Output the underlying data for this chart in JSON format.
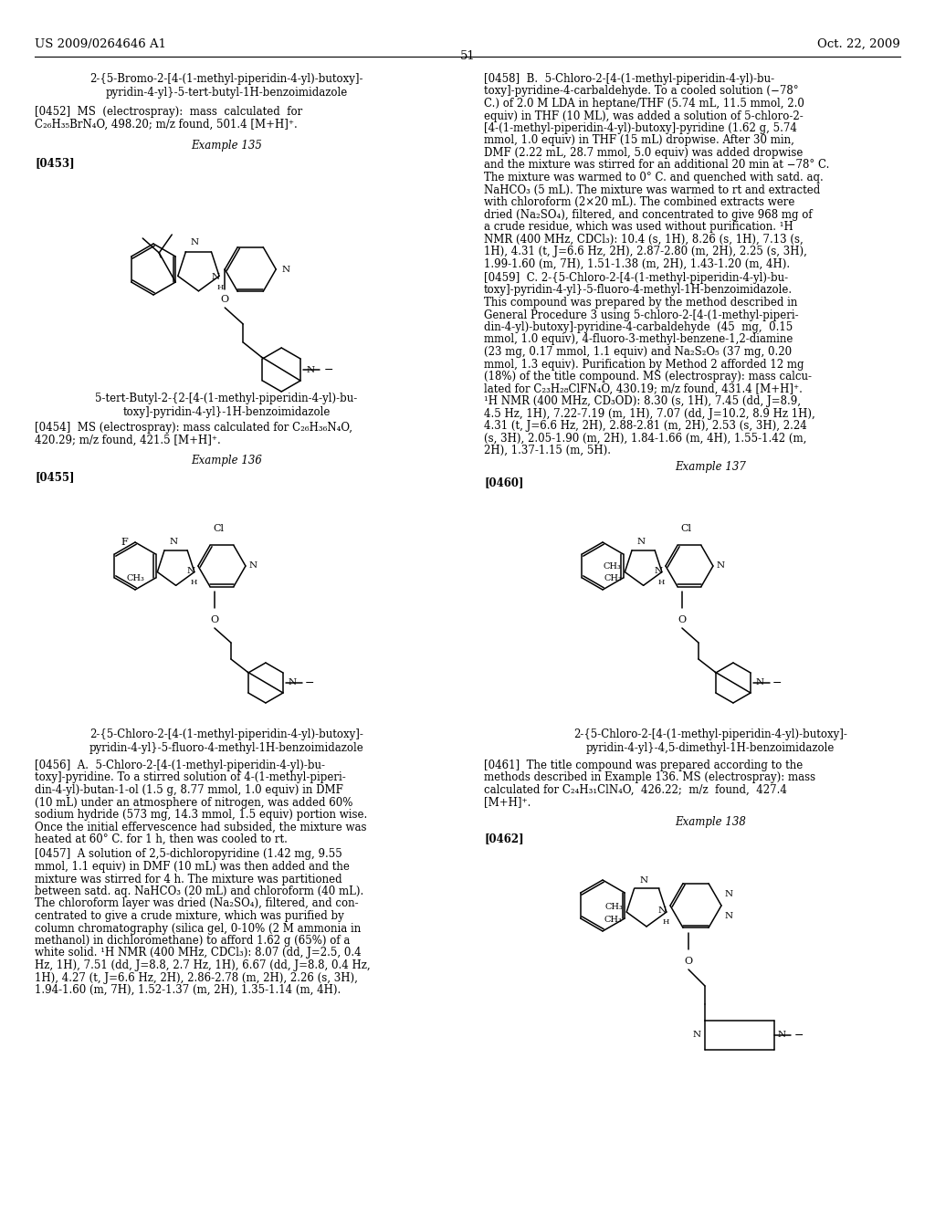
{
  "page_header_left": "US 2009/0264646 A1",
  "page_header_right": "Oct. 22, 2009",
  "page_number": "51",
  "background_color": "#ffffff",
  "title_top_line1": "2-{5-Bromo-2-[4-(1-methyl-piperidin-4-yl)-butoxy]-",
  "title_top_line2": "pyridin-4-yl}-5-tert-butyl-1H-benzoimidazole",
  "para_0452_line1": "[0452]  MS  (electrospray):  mass  calculated  for",
  "para_0452_line2": "C₂₆H₃₅BrN₄O, 498.20; m/z found, 501.4 [M+H]⁺.",
  "ex135": "Example 135",
  "label_0453": "[0453]",
  "caption_135_line1": "5-tert-Butyl-2-{2-[4-(1-methyl-piperidin-4-yl)-bu-",
  "caption_135_line2": "toxy]-pyridin-4-yl}-1H-benzoimidazole",
  "para_0454_line1": "[0454]  MS (electrospray): mass calculated for C₂₆H₃₆N₄O,",
  "para_0454_line2": "420.29; m/z found, 421.5 [M+H]⁺.",
  "ex136": "Example 136",
  "label_0455": "[0455]",
  "caption_136_line1": "2-{5-Chloro-2-[4-(1-methyl-piperidin-4-yl)-butoxy]-",
  "caption_136_line2": "pyridin-4-yl}-5-fluoro-4-methyl-1H-benzoimidazole",
  "para_0456_1": "[0456]  A.  5-Chloro-2-[4-(1-methyl-piperidin-4-yl)-bu-",
  "para_0456_2": "toxy]-pyridine. To a stirred solution of 4-(1-methyl-piperi-",
  "para_0456_3": "din-4-yl)-butan-1-ol (1.5 g, 8.77 mmol, 1.0 equiv) in DMF",
  "para_0456_4": "(10 mL) under an atmosphere of nitrogen, was added 60%",
  "para_0456_5": "sodium hydride (573 mg, 14.3 mmol, 1.5 equiv) portion wise.",
  "para_0456_6": "Once the initial effervescence had subsided, the mixture was",
  "para_0456_7": "heated at 60° C. for 1 h, then was cooled to rt.",
  "para_0457_1": "[0457]  A solution of 2,5-dichloropyridine (1.42 mg, 9.55",
  "para_0457_2": "mmol, 1.1 equiv) in DMF (10 mL) was then added and the",
  "para_0457_3": "mixture was stirred for 4 h. The mixture was partitioned",
  "para_0457_4": "between satd. aq. NaHCO₃ (20 mL) and chloroform (40 mL).",
  "para_0457_5": "The chloroform layer was dried (Na₂SO₄), filtered, and con-",
  "para_0457_6": "centrated to give a crude mixture, which was purified by",
  "para_0457_7": "column chromatography (silica gel, 0-10% (2 M ammonia in",
  "para_0457_8": "methanol) in dichloromethane) to afford 1.62 g (65%) of a",
  "para_0457_9": "white solid. ¹H NMR (400 MHz, CDCl₃): 8.07 (dd, J=2.5, 0.4",
  "para_0457_10": "Hz, 1H), 7.51 (dd, J=8.8, 2.7 Hz, 1H), 6.67 (dd, J=8.8, 0.4 Hz,",
  "para_0457_11": "1H), 4.27 (t, J=6.6 Hz, 2H), 2.86-2.78 (m, 2H), 2.26 (s, 3H),",
  "para_0457_12": "1.94-1.60 (m, 7H), 1.52-1.37 (m, 2H), 1.35-1.14 (m, 4H).",
  "para_0458_1": "[0458]  B.  5-Chloro-2-[4-(1-methyl-piperidin-4-yl)-bu-",
  "para_0458_2": "toxy]-pyridine-4-carbaldehyde. To a cooled solution (−78°",
  "para_0458_3": "C.) of 2.0 M LDA in heptane/THF (5.74 mL, 11.5 mmol, 2.0",
  "para_0458_4": "equiv) in THF (10 ML), was added a solution of 5-chloro-2-",
  "para_0458_5": "[4-(1-methyl-piperidin-4-yl)-butoxy]-pyridine (1.62 g, 5.74",
  "para_0458_6": "mmol, 1.0 equiv) in THF (15 mL) dropwise. After 30 min,",
  "para_0458_7": "DMF (2.22 mL, 28.7 mmol, 5.0 equiv) was added dropwise",
  "para_0458_8": "and the mixture was stirred for an additional 20 min at −78° C.",
  "para_0458_9": "The mixture was warmed to 0° C. and quenched with satd. aq.",
  "para_0458_10": "NaHCO₃ (5 mL). The mixture was warmed to rt and extracted",
  "para_0458_11": "with chloroform (2×20 mL). The combined extracts were",
  "para_0458_12": "dried (Na₂SO₄), filtered, and concentrated to give 968 mg of",
  "para_0458_13": "a crude residue, which was used without purification. ¹H",
  "para_0458_14": "NMR (400 MHz, CDCl₃): 10.4 (s, 1H), 8.26 (s, 1H), 7.13 (s,",
  "para_0458_15": "1H), 4.31 (t, J=6.6 Hz, 2H), 2.87-2.80 (m, 2H), 2.25 (s, 3H),",
  "para_0458_16": "1.99-1.60 (m, 7H), 1.51-1.38 (m, 2H), 1.43-1.20 (m, 4H).",
  "para_0459_1": "[0459]  C. 2-{5-Chloro-2-[4-(1-methyl-piperidin-4-yl)-bu-",
  "para_0459_2": "toxy]-pyridin-4-yl}-5-fluoro-4-methyl-1H-benzoimidazole.",
  "para_0459_3": "This compound was prepared by the method described in",
  "para_0459_4": "General Procedure 3 using 5-chloro-2-[4-(1-methyl-piperi-",
  "para_0459_5": "din-4-yl)-butoxy]-pyridine-4-carbaldehyde  (45  mg,  0.15",
  "para_0459_6": "mmol, 1.0 equiv), 4-fluoro-3-methyl-benzene-1,2-diamine",
  "para_0459_7": "(23 mg, 0.17 mmol, 1.1 equiv) and Na₂S₂O₅ (37 mg, 0.20",
  "para_0459_8": "mmol, 1.3 equiv). Purification by Method 2 afforded 12 mg",
  "para_0459_9": "(18%) of the title compound. MS (electrospray): mass calcu-",
  "para_0459_10": "lated for C₂₃H₂₈ClFN₄O, 430.19; m/z found, 431.4 [M+H]⁺.",
  "para_0459_11": "¹H NMR (400 MHz, CD₃OD): 8.30 (s, 1H), 7.45 (dd, J=8.9,",
  "para_0459_12": "4.5 Hz, 1H), 7.22-7.19 (m, 1H), 7.07 (dd, J=10.2, 8.9 Hz 1H),",
  "para_0459_13": "4.31 (t, J=6.6 Hz, 2H), 2.88-2.81 (m, 2H), 2.53 (s, 3H), 2.24",
  "para_0459_14": "(s, 3H), 2.05-1.90 (m, 2H), 1.84-1.66 (m, 4H), 1.55-1.42 (m,",
  "para_0459_15": "2H), 1.37-1.15 (m, 5H).",
  "ex137": "Example 137",
  "label_0460": "[0460]",
  "caption_137_line1": "2-{5-Chloro-2-[4-(1-methyl-piperidin-4-yl)-butoxy]-",
  "caption_137_line2": "pyridin-4-yl}-4,5-dimethyl-1H-benzoimidazole",
  "para_0461_1": "[0461]  The title compound was prepared according to the",
  "para_0461_2": "methods described in Example 136. MS (electrospray): mass",
  "para_0461_3": "calculated for C₂₄H₃₁ClN₄O,  426.22;  m/z  found,  427.4",
  "para_0461_4": "[M+H]⁺.",
  "ex138": "Example 138",
  "label_0462": "[0462]"
}
